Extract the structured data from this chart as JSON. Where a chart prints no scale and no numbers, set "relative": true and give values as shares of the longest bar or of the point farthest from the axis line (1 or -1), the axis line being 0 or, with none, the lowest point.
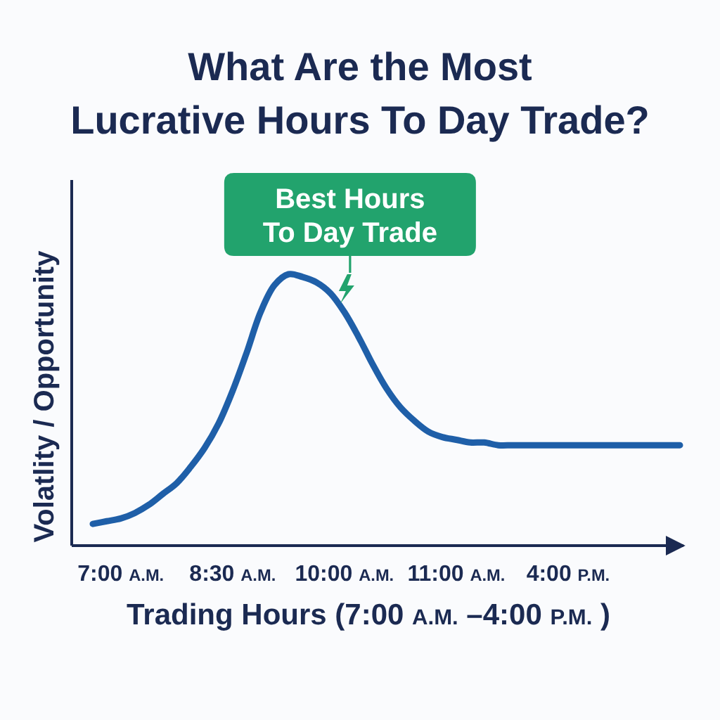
{
  "chart_data": {
    "type": "line",
    "title": "What Are the Most\nLucrative Hours To Day Trade?",
    "xlabel": "Trading Hours (7:00 A.M. –4:00 P.M. )",
    "ylabel": "Volatlity / Opportunity",
    "annotations": [
      {
        "text": "Best Hours\nTo Day Trade",
        "x": "10:00 A.M.",
        "y": 0.86
      }
    ],
    "relative": true,
    "categories": [
      null,
      null,
      "7:00 A.M.",
      null,
      null,
      null,
      null,
      null,
      null,
      null,
      "8:30 A.M.",
      null,
      null,
      null,
      null,
      null,
      null,
      null,
      "10:00 A.M.",
      null,
      null,
      null,
      null,
      null,
      null,
      null,
      "11:00 A.M.",
      null,
      null,
      null,
      null,
      null,
      null,
      null,
      "4:00 P.M.",
      null,
      null,
      null,
      null,
      null,
      null,
      null,
      null
    ],
    "series": [
      {
        "color": "#1f5fa8",
        "values": [
          0.08,
          0.09,
          0.1,
          0.12,
          0.15,
          0.19,
          0.23,
          0.29,
          0.36,
          0.45,
          0.57,
          0.71,
          0.86,
          0.96,
          1,
          0.99,
          0.97,
          0.93,
          0.86,
          0.77,
          0.67,
          0.58,
          0.51,
          0.46,
          0.42,
          0.4,
          0.39,
          0.38,
          0.38,
          0.37,
          0.37,
          0.37,
          0.37,
          0.37,
          0.37,
          0.37,
          0.37,
          0.37,
          0.37,
          0.37,
          0.37,
          0.37,
          0.37
        ]
      }
    ]
  }
}
